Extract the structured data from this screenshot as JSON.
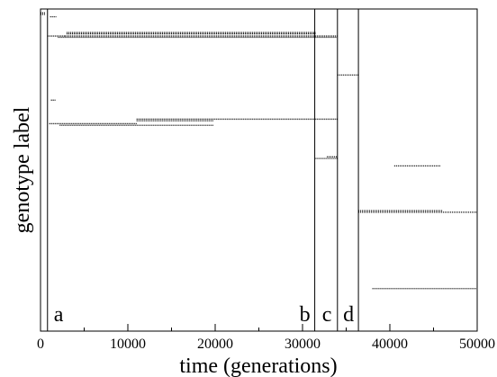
{
  "chart_data": {
    "type": "scatter",
    "title": "",
    "xlabel": "time (generations)",
    "ylabel": "genotype label",
    "xlim": [
      0,
      50000
    ],
    "ylim": [
      0,
      100
    ],
    "x_ticks": [
      0,
      10000,
      20000,
      30000,
      40000,
      50000
    ],
    "x_tick_labels": [
      "0",
      "10000",
      "20000",
      "30000",
      "40000",
      "50000"
    ],
    "y_ticks": [],
    "grid": false,
    "legend": "none",
    "transitions": [
      {
        "label": "a",
        "x": 800
      },
      {
        "label": "b",
        "x": 31400
      },
      {
        "label": "c",
        "x": 34000
      },
      {
        "label": "d",
        "x": 36400
      }
    ],
    "series": [
      {
        "segments": [
          {
            "x0": 0,
            "x1": 500,
            "y": 98.8
          },
          {
            "x0": 0,
            "x1": 500,
            "y": 98.3
          },
          {
            "x0": 1100,
            "x1": 1800,
            "y": 97.6
          },
          {
            "x0": 800,
            "x1": 2800,
            "y": 91.6
          },
          {
            "x0": 2800,
            "x1": 34000,
            "y": 91.6
          },
          {
            "x0": 2000,
            "x1": 34000,
            "y": 91.2
          },
          {
            "x0": 3000,
            "x1": 31500,
            "y": 92.3
          },
          {
            "x0": 3000,
            "x1": 31500,
            "y": 92.7
          },
          {
            "x0": 1200,
            "x1": 1700,
            "y": 71.7
          },
          {
            "x0": 11000,
            "x1": 34000,
            "y": 65.8
          },
          {
            "x0": 1000,
            "x1": 11000,
            "y": 64.4
          },
          {
            "x0": 2200,
            "x1": 19800,
            "y": 63.9
          },
          {
            "x0": 11000,
            "x1": 19800,
            "y": 65.3
          },
          {
            "x0": 34000,
            "x1": 36400,
            "y": 79.5
          },
          {
            "x0": 31400,
            "x1": 34000,
            "y": 53.6
          },
          {
            "x0": 32800,
            "x1": 34000,
            "y": 54.1
          },
          {
            "x0": 36400,
            "x1": 50000,
            "y": 36.9
          },
          {
            "x0": 36400,
            "x1": 46000,
            "y": 37.4
          },
          {
            "x0": 40500,
            "x1": 45800,
            "y": 51.3
          },
          {
            "x0": 38000,
            "x1": 49900,
            "y": 13.2
          }
        ]
      }
    ]
  }
}
